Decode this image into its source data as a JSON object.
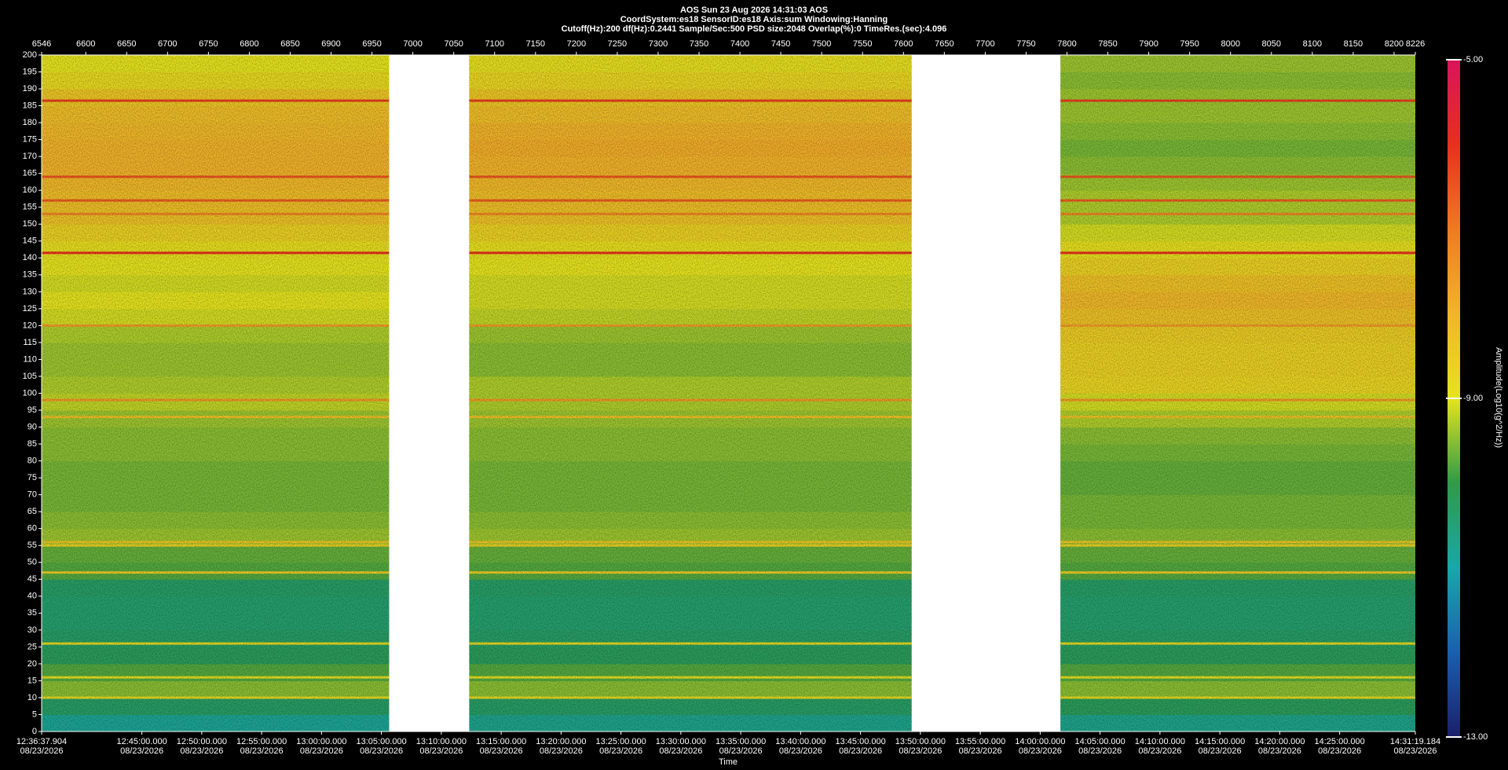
{
  "chart_data": {
    "type": "spectrogram",
    "title": "AOS  Sun 23 Aug 2026 14:31:03  AOS",
    "subtitle": [
      "CoordSystem:es18   SensorID:es18   Axis:sum   Windowing:Hanning",
      "Cutoff(Hz):200      df(Hz):0.2441      Sample/Sec:500      PSD size:2048      Overlap(%):0      TimeRes.(sec):4.096"
    ],
    "x_label": "Time",
    "colorbar_label": "Amplitude(Log10(g^2/Hz))",
    "x_date": "08/23/2026",
    "xlim": [
      6546,
      8226
    ],
    "xticks": [
      6546,
      6600,
      6650,
      6700,
      6750,
      6800,
      6850,
      6900,
      6950,
      7000,
      7050,
      7100,
      7150,
      7200,
      7250,
      7300,
      7350,
      7400,
      7450,
      7500,
      7550,
      7600,
      7650,
      7700,
      7750,
      7800,
      7850,
      7900,
      7950,
      8000,
      8050,
      8100,
      8150,
      8200,
      8226
    ],
    "x2ticks": [
      {
        "value": 6546,
        "label": "12:36:37.904"
      },
      {
        "value": 6668.58,
        "label": "12:45:00.000"
      },
      {
        "value": 6741.83,
        "label": "12:50:00.000"
      },
      {
        "value": 6815.07,
        "label": "12:55:00.000"
      },
      {
        "value": 6888.31,
        "label": "13:00:00.000"
      },
      {
        "value": 6961.55,
        "label": "13:05:00.000"
      },
      {
        "value": 7034.8,
        "label": "13:10:00.000"
      },
      {
        "value": 7108.04,
        "label": "13:15:00.000"
      },
      {
        "value": 7181.28,
        "label": "13:20:00.000"
      },
      {
        "value": 7254.52,
        "label": "13:25:00.000"
      },
      {
        "value": 7327.77,
        "label": "13:30:00.000"
      },
      {
        "value": 7401.01,
        "label": "13:35:00.000"
      },
      {
        "value": 7474.25,
        "label": "13:40:00.000"
      },
      {
        "value": 7547.49,
        "label": "13:45:00.000"
      },
      {
        "value": 7620.73,
        "label": "13:50:00.000"
      },
      {
        "value": 7693.98,
        "label": "13:55:00.000"
      },
      {
        "value": 7767.22,
        "label": "14:00:00.000"
      },
      {
        "value": 7840.46,
        "label": "14:05:00.000"
      },
      {
        "value": 7913.7,
        "label": "14:10:00.000"
      },
      {
        "value": 7986.95,
        "label": "14:15:00.000"
      },
      {
        "value": 8060.19,
        "label": "14:20:00.000"
      },
      {
        "value": 8133.43,
        "label": "14:25:00.000"
      },
      {
        "value": 8226,
        "label": "14:31:19.184"
      }
    ],
    "ylim": [
      0,
      200
    ],
    "yticks": [
      0,
      5,
      10,
      15,
      20,
      25,
      30,
      35,
      40,
      45,
      50,
      55,
      60,
      65,
      70,
      75,
      80,
      85,
      90,
      95,
      100,
      105,
      110,
      115,
      120,
      125,
      130,
      135,
      140,
      145,
      150,
      155,
      160,
      165,
      170,
      175,
      180,
      185,
      190,
      195,
      200
    ],
    "zlim": [
      -13,
      -5
    ],
    "zticks": [
      {
        "value": -13,
        "label": "-13.00"
      },
      {
        "value": -9,
        "label": "-9.00"
      },
      {
        "value": -5,
        "label": "-5.00"
      }
    ],
    "colormap": [
      "#1b1f6b",
      "#1a5fb0",
      "#18a8a8",
      "#2f9a48",
      "#e6e41e",
      "#f2b42a",
      "#f07a22",
      "#e6301e",
      "#d8145a"
    ],
    "bands": [
      0,
      5,
      10,
      15,
      20,
      25,
      30,
      35,
      40,
      45,
      50,
      55,
      60,
      65,
      70,
      75,
      80,
      85,
      90,
      95,
      100,
      105,
      110,
      115,
      120,
      125,
      130,
      135,
      140,
      145,
      150,
      155,
      160,
      165,
      170,
      175,
      180,
      185,
      190,
      195,
      200
    ],
    "segments": [
      {
        "start": 6546,
        "end": 6971,
        "levels": [
          -10.8,
          -10.3,
          -9.5,
          -9.8,
          -10.2,
          -10.3,
          -10.4,
          -10.4,
          -10.3,
          -9.8,
          -9.7,
          -9.4,
          -9.5,
          -9.6,
          -9.6,
          -9.6,
          -9.5,
          -9.5,
          -9.4,
          -9.2,
          -9.3,
          -9.4,
          -9.4,
          -9.3,
          -9.1,
          -9.0,
          -9.1,
          -9.0,
          -8.9,
          -8.6,
          -8.3,
          -8.2,
          -8.1,
          -8.0,
          -8.0,
          -8.1,
          -8.2,
          -8.4,
          -8.8,
          -9.0
        ]
      },
      {
        "start": 7069,
        "end": 7610,
        "levels": [
          -10.7,
          -10.3,
          -9.5,
          -9.8,
          -10.2,
          -10.3,
          -10.4,
          -10.4,
          -10.3,
          -9.8,
          -9.7,
          -9.4,
          -9.5,
          -9.6,
          -9.6,
          -9.6,
          -9.5,
          -9.5,
          -9.4,
          -9.3,
          -9.3,
          -9.5,
          -9.5,
          -9.4,
          -9.2,
          -9.1,
          -9.1,
          -9.0,
          -8.9,
          -8.6,
          -8.3,
          -8.2,
          -8.1,
          -8.0,
          -7.9,
          -8.0,
          -8.2,
          -8.4,
          -8.7,
          -8.9
        ]
      },
      {
        "start": 7792,
        "end": 8226,
        "levels": [
          -10.7,
          -10.2,
          -9.5,
          -9.8,
          -10.2,
          -10.3,
          -10.4,
          -10.4,
          -10.3,
          -9.8,
          -9.7,
          -9.5,
          -9.6,
          -9.6,
          -9.7,
          -9.7,
          -9.6,
          -9.5,
          -9.3,
          -9.1,
          -8.7,
          -8.6,
          -8.6,
          -8.5,
          -8.3,
          -8.1,
          -8.3,
          -8.6,
          -8.9,
          -9.1,
          -9.3,
          -9.3,
          -9.4,
          -9.5,
          -9.6,
          -9.5,
          -9.4,
          -9.4,
          -9.5,
          -9.4
        ]
      }
    ],
    "tones": [
      {
        "freq": 186.5,
        "level": -6.2
      },
      {
        "freq": 164,
        "level": -6.5
      },
      {
        "freq": 157,
        "level": -6.6
      },
      {
        "freq": 153,
        "level": -7.2
      },
      {
        "freq": 141.5,
        "level": -6.0
      },
      {
        "freq": 120,
        "level": -7.6
      },
      {
        "freq": 98,
        "level": -7.5
      },
      {
        "freq": 93,
        "level": -8.3
      },
      {
        "freq": 56,
        "level": -8.4
      },
      {
        "freq": 55,
        "level": -8.6
      },
      {
        "freq": 47,
        "level": -8.5
      },
      {
        "freq": 26,
        "level": -8.8
      },
      {
        "freq": 16,
        "level": -8.9
      },
      {
        "freq": 10,
        "level": -8.8
      }
    ]
  }
}
